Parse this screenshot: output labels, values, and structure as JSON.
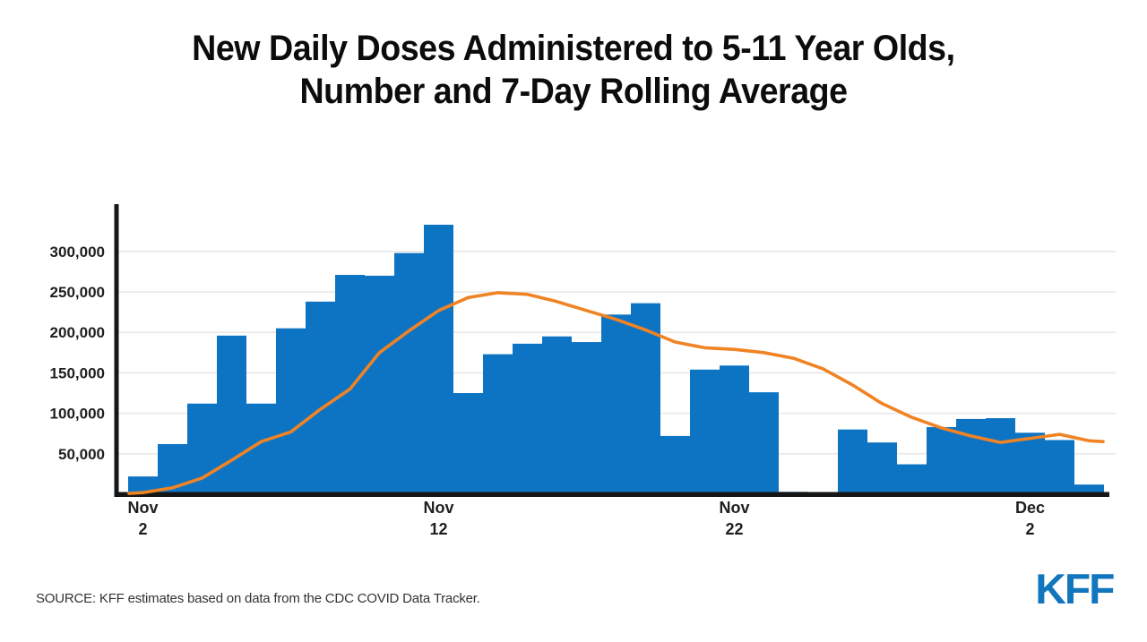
{
  "header": {
    "title_line1": "New Daily Doses Administered to 5-11 Year Olds,",
    "title_line2": "Number and 7-Day Rolling Average"
  },
  "footer": {
    "source_text": "SOURCE: KFF estimates based on data from the CDC COVID Data Tracker.",
    "logo_text": "KFF"
  },
  "chart_data": {
    "type": "bar",
    "title": "New Daily Doses Administered to 5-11 Year Olds, Number and 7-Day Rolling Average",
    "xlabel": "",
    "ylabel": "",
    "ylim": [
      0,
      358000
    ],
    "grid": true,
    "legend_position": "none",
    "categories": [
      "Nov 2",
      "Nov 3",
      "Nov 4",
      "Nov 5",
      "Nov 6",
      "Nov 7",
      "Nov 8",
      "Nov 9",
      "Nov 10",
      "Nov 11",
      "Nov 12",
      "Nov 13",
      "Nov 14",
      "Nov 15",
      "Nov 16",
      "Nov 17",
      "Nov 18",
      "Nov 19",
      "Nov 20",
      "Nov 21",
      "Nov 22",
      "Nov 23",
      "Nov 24",
      "Nov 25",
      "Nov 26",
      "Nov 27",
      "Nov 28",
      "Nov 29",
      "Nov 30",
      "Dec 1",
      "Dec 2",
      "Dec 3",
      "Dec 4"
    ],
    "series": [
      {
        "name": "New daily doses",
        "type": "bar",
        "values": [
          22000,
          62000,
          112000,
          196000,
          112000,
          205000,
          238000,
          271000,
          270000,
          298000,
          333000,
          125000,
          173000,
          186000,
          195000,
          188000,
          222000,
          236000,
          72000,
          154000,
          159000,
          126000,
          3000,
          0,
          80000,
          64000,
          37000,
          83000,
          93000,
          94000,
          76000,
          67000,
          12000
        ]
      },
      {
        "name": "7-day rolling average",
        "type": "line",
        "values": [
          2000,
          8000,
          20000,
          42000,
          65000,
          77000,
          105000,
          130000,
          175000,
          202000,
          227000,
          243000,
          249000,
          247000,
          238000,
          227000,
          216000,
          203000,
          188000,
          181000,
          179000,
          175000,
          168000,
          155000,
          135000,
          112000,
          95000,
          82000,
          72000,
          64000,
          69000,
          74000,
          66000
        ]
      }
    ],
    "y_ticks": [
      {
        "value": 50000,
        "label": "50,000"
      },
      {
        "value": 100000,
        "label": "100,000"
      },
      {
        "value": 150000,
        "label": "150,000"
      },
      {
        "value": 200000,
        "label": "200,000"
      },
      {
        "value": 250000,
        "label": "250,000"
      },
      {
        "value": 300000,
        "label": "300,000"
      }
    ],
    "x_ticks": [
      {
        "index": 0,
        "line1": "Nov",
        "line2": "2"
      },
      {
        "index": 10,
        "line1": "Nov",
        "line2": "12"
      },
      {
        "index": 20,
        "line1": "Nov",
        "line2": "22"
      },
      {
        "index": 30,
        "line1": "Dec",
        "line2": "2"
      }
    ],
    "colors": {
      "bar": "#0d74c4",
      "line": "#f08323",
      "axis": "#161616",
      "gridline": "#e7e7e7",
      "tick_text": "#1f1f1f",
      "logo_blue": "#1176be"
    }
  }
}
